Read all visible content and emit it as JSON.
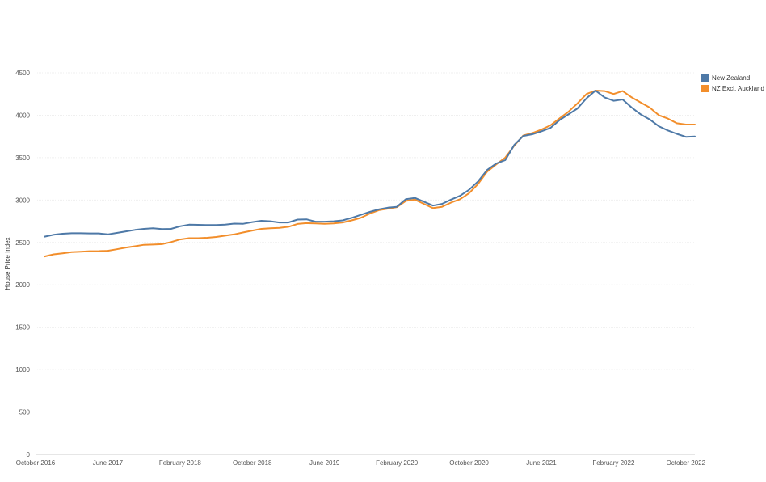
{
  "chart_data": {
    "type": "line",
    "title": "",
    "xlabel": "",
    "ylabel": "House Price Index",
    "ylim": [
      0,
      4500
    ],
    "yticks": [
      0,
      500,
      1000,
      1500,
      2000,
      2500,
      3000,
      3500,
      4000,
      4500
    ],
    "xlim": [
      "2016-10",
      "2022-11"
    ],
    "xticks": [
      {
        "date": "2016-10",
        "label": "October 2016"
      },
      {
        "date": "2017-06",
        "label": "June 2017"
      },
      {
        "date": "2018-02",
        "label": "February 2018"
      },
      {
        "date": "2018-10",
        "label": "October 2018"
      },
      {
        "date": "2019-06",
        "label": "June 2019"
      },
      {
        "date": "2020-02",
        "label": "February 2020"
      },
      {
        "date": "2020-10",
        "label": "October 2020"
      },
      {
        "date": "2021-06",
        "label": "June 2021"
      },
      {
        "date": "2022-02",
        "label": "February 2022"
      },
      {
        "date": "2022-10",
        "label": "October 2022"
      }
    ],
    "grid": true,
    "legend_position": "top-right",
    "x": [
      "2016-11",
      "2016-12",
      "2017-01",
      "2017-02",
      "2017-03",
      "2017-04",
      "2017-05",
      "2017-06",
      "2017-07",
      "2017-08",
      "2017-09",
      "2017-10",
      "2017-11",
      "2017-12",
      "2018-01",
      "2018-02",
      "2018-03",
      "2018-04",
      "2018-05",
      "2018-06",
      "2018-07",
      "2018-08",
      "2018-09",
      "2018-10",
      "2018-11",
      "2018-12",
      "2019-01",
      "2019-02",
      "2019-03",
      "2019-04",
      "2019-05",
      "2019-06",
      "2019-07",
      "2019-08",
      "2019-09",
      "2019-10",
      "2019-11",
      "2019-12",
      "2020-01",
      "2020-02",
      "2020-03",
      "2020-04",
      "2020-05",
      "2020-06",
      "2020-07",
      "2020-08",
      "2020-09",
      "2020-10",
      "2020-11",
      "2020-12",
      "2021-01",
      "2021-02",
      "2021-03",
      "2021-04",
      "2021-05",
      "2021-06",
      "2021-07",
      "2021-08",
      "2021-09",
      "2021-10",
      "2021-11",
      "2021-12",
      "2022-01",
      "2022-02",
      "2022-03",
      "2022-04",
      "2022-05",
      "2022-06",
      "2022-07",
      "2022-08",
      "2022-09",
      "2022-10",
      "2022-11"
    ],
    "series": [
      {
        "name": "New Zealand",
        "color": "#4e79a7",
        "values": [
          2568,
          2590,
          2603,
          2608,
          2608,
          2607,
          2607,
          2595,
          2612,
          2630,
          2648,
          2660,
          2668,
          2658,
          2660,
          2690,
          2710,
          2708,
          2705,
          2705,
          2710,
          2722,
          2720,
          2740,
          2755,
          2750,
          2735,
          2735,
          2770,
          2772,
          2745,
          2745,
          2750,
          2760,
          2790,
          2825,
          2860,
          2890,
          2910,
          2920,
          3010,
          3025,
          2980,
          2935,
          2955,
          3005,
          3050,
          3120,
          3220,
          3355,
          3430,
          3470,
          3650,
          3755,
          3775,
          3810,
          3850,
          3940,
          4010,
          4080,
          4200,
          4290,
          4210,
          4170,
          4185,
          4090,
          4010,
          3950,
          3870,
          3820,
          3780,
          3745,
          3750
        ]
      },
      {
        "name": "NZ Excl. Auckland",
        "color": "#f28e2b",
        "values": [
          2335,
          2360,
          2372,
          2385,
          2390,
          2397,
          2398,
          2402,
          2420,
          2440,
          2455,
          2472,
          2475,
          2480,
          2505,
          2535,
          2550,
          2550,
          2555,
          2565,
          2580,
          2595,
          2618,
          2640,
          2660,
          2668,
          2672,
          2685,
          2718,
          2728,
          2725,
          2720,
          2725,
          2735,
          2760,
          2790,
          2840,
          2880,
          2898,
          2915,
          2990,
          3005,
          2955,
          2905,
          2920,
          2970,
          3010,
          3080,
          3190,
          3335,
          3420,
          3500,
          3640,
          3760,
          3790,
          3830,
          3880,
          3960,
          4040,
          4140,
          4250,
          4290,
          4285,
          4250,
          4285,
          4210,
          4150,
          4090,
          4000,
          3960,
          3905,
          3890,
          3890
        ]
      }
    ]
  }
}
